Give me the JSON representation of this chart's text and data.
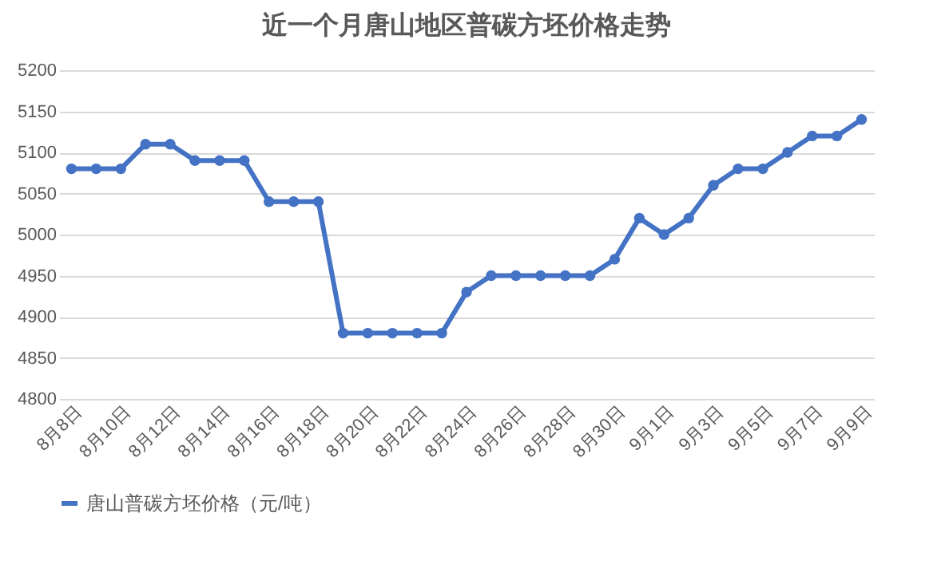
{
  "chart_data": {
    "type": "line",
    "title": "近一个月唐山地区普碳方坯价格走势",
    "categories": [
      "8月8日",
      null,
      "8月10日",
      null,
      "8月12日",
      null,
      "8月14日",
      null,
      "8月16日",
      null,
      "8月18日",
      null,
      "8月20日",
      null,
      "8月22日",
      null,
      "8月24日",
      null,
      "8月26日",
      null,
      "8月28日",
      null,
      "8月30日",
      null,
      "9月1日",
      null,
      "9月3日",
      null,
      "9月5日",
      null,
      "9月7日",
      null,
      "9月9日"
    ],
    "series": [
      {
        "name": "唐山普碳方坯价格（元/吨）",
        "color": "#4472c4",
        "values": [
          5080,
          5080,
          5080,
          5110,
          5110,
          5090,
          5090,
          5090,
          5040,
          5040,
          5040,
          4880,
          4880,
          4880,
          4880,
          4880,
          4930,
          4950,
          4950,
          4950,
          4950,
          4950,
          4970,
          5020,
          5000,
          5020,
          5060,
          5080,
          5080,
          5100,
          5120,
          5120,
          5140
        ]
      }
    ],
    "ylim": [
      4800,
      5200
    ],
    "yticks": [
      4800,
      4850,
      4900,
      4950,
      5000,
      5050,
      5100,
      5150,
      5200
    ],
    "grid": "y",
    "legend": "bottom",
    "marker": "circle",
    "line_style": "solid"
  }
}
